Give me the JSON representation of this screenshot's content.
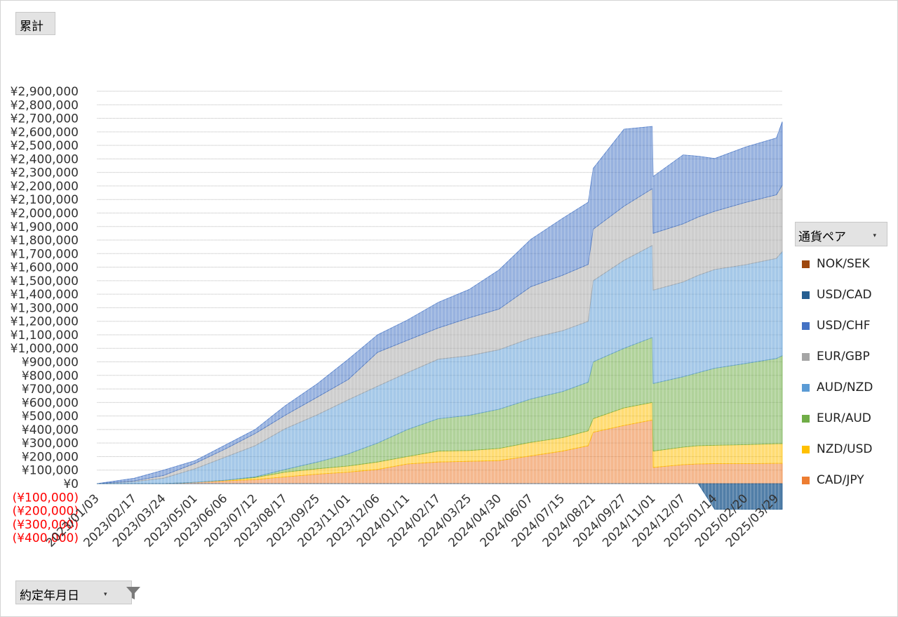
{
  "buttons": {
    "value_field": "累計",
    "date_field": "約定年月日",
    "legend_field": "通貨ペア"
  },
  "icons": {
    "legend_dropdown": "dropdown-arrow-icon",
    "date_dropdown": "dropdown-arrow-icon",
    "date_filter": "filter-icon"
  },
  "legend": [
    {
      "name": "NOK/SEK",
      "color": "#9e480e"
    },
    {
      "name": "USD/CAD",
      "color": "#255e91"
    },
    {
      "name": "USD/CHF",
      "color": "#4472c4"
    },
    {
      "name": "EUR/GBP",
      "color": "#a5a5a5"
    },
    {
      "name": "AUD/NZD",
      "color": "#5b9bd5"
    },
    {
      "name": "EUR/AUD",
      "color": "#70ad47"
    },
    {
      "name": "NZD/USD",
      "color": "#ffc000"
    },
    {
      "name": "CAD/JPY",
      "color": "#ed7d31"
    }
  ],
  "chart_data": {
    "type": "area",
    "stacked": true,
    "ylim": [
      -400000,
      2900000
    ],
    "ytick_step": 100000,
    "y_tick_labels": [
      "¥2,900,000",
      "¥2,800,000",
      "¥2,700,000",
      "¥2,600,000",
      "¥2,500,000",
      "¥2,400,000",
      "¥2,300,000",
      "¥2,200,000",
      "¥2,100,000",
      "¥2,000,000",
      "¥1,900,000",
      "¥1,800,000",
      "¥1,700,000",
      "¥1,600,000",
      "¥1,500,000",
      "¥1,400,000",
      "¥1,300,000",
      "¥1,200,000",
      "¥1,100,000",
      "¥1,000,000",
      "¥900,000",
      "¥800,000",
      "¥700,000",
      "¥600,000",
      "¥500,000",
      "¥400,000",
      "¥300,000",
      "¥200,000",
      "¥100,000",
      "¥0",
      "(¥100,000)",
      "(¥200,000)",
      "(¥300,000)",
      "(¥400,000)"
    ],
    "negative_label_color": "#ff0000",
    "x_tick_labels": [
      "2023/01/03",
      "2023/02/17",
      "2023/03/24",
      "2023/05/01",
      "2023/06/06",
      "2023/07/12",
      "2023/08/17",
      "2023/09/25",
      "2023/11/01",
      "2023/12/06",
      "2024/01/11",
      "2024/02/17",
      "2024/03/25",
      "2024/04/30",
      "2024/06/07",
      "2024/07/15",
      "2024/08/21",
      "2024/09/27",
      "2024/11/01",
      "2024/12/07",
      "2025/01/14",
      "2025/02/20",
      "2025/03/29"
    ],
    "x": [
      "2023/01/03",
      "2023/02/17",
      "2023/03/24",
      "2023/05/01",
      "2023/06/06",
      "2023/07/12",
      "2023/08/17",
      "2023/09/25",
      "2023/11/01",
      "2023/12/06",
      "2024/01/11",
      "2024/02/17",
      "2024/03/25",
      "2024/04/30",
      "2024/06/07",
      "2024/07/15",
      "2024/08/15",
      "2024/08/21",
      "2024/09/27",
      "2024/10/31",
      "2024/11/01",
      "2024/12/07",
      "2024/12/25",
      "2025/01/14",
      "2025/02/20",
      "2025/03/29",
      "2025/04/05"
    ],
    "series": [
      {
        "name": "CAD/JPY",
        "values": [
          0,
          0,
          0,
          10000,
          20000,
          30000,
          50000,
          70000,
          85000,
          105000,
          145000,
          160000,
          165000,
          170000,
          205000,
          240000,
          280000,
          380000,
          430000,
          470000,
          120000,
          140000,
          145000,
          148000,
          148000,
          150000,
          150000
        ]
      },
      {
        "name": "NZD/USD",
        "values": [
          0,
          0,
          0,
          0,
          5000,
          15000,
          35000,
          40000,
          45000,
          55000,
          55000,
          80000,
          80000,
          90000,
          100000,
          100000,
          110000,
          100000,
          130000,
          130000,
          120000,
          130000,
          135000,
          135000,
          140000,
          145000,
          145000
        ]
      },
      {
        "name": "EUR/AUD",
        "values": [
          0,
          0,
          0,
          0,
          0,
          5000,
          20000,
          50000,
          90000,
          140000,
          200000,
          240000,
          260000,
          290000,
          320000,
          340000,
          360000,
          420000,
          440000,
          480000,
          500000,
          520000,
          540000,
          570000,
          600000,
          630000,
          650000
        ]
      },
      {
        "name": "AUD/NZD",
        "values": [
          0,
          15000,
          40000,
          100000,
          170000,
          230000,
          300000,
          350000,
          400000,
          420000,
          420000,
          440000,
          440000,
          440000,
          450000,
          450000,
          450000,
          600000,
          650000,
          680000,
          690000,
          700000,
          720000,
          730000,
          730000,
          740000,
          770000
        ]
      },
      {
        "name": "EUR/GBP",
        "values": [
          0,
          5000,
          20000,
          40000,
          60000,
          90000,
          100000,
          130000,
          150000,
          250000,
          240000,
          230000,
          280000,
          300000,
          380000,
          410000,
          420000,
          380000,
          400000,
          420000,
          420000,
          430000,
          430000,
          430000,
          460000,
          470000,
          490000
        ]
      },
      {
        "name": "USD/CHF",
        "values": [
          0,
          20000,
          40000,
          20000,
          30000,
          30000,
          70000,
          100000,
          150000,
          130000,
          150000,
          190000,
          210000,
          290000,
          350000,
          420000,
          460000,
          450000,
          570000,
          460000,
          420000,
          510000,
          450000,
          390000,
          410000,
          420000,
          470000
        ]
      },
      {
        "name": "USD/CAD",
        "values": [
          0,
          0,
          0,
          0,
          0,
          0,
          0,
          0,
          0,
          0,
          0,
          0,
          0,
          0,
          0,
          0,
          0,
          0,
          0,
          0,
          0,
          0,
          0,
          -190000,
          -190000,
          -190000,
          -190000
        ]
      },
      {
        "name": "NOK/SEK",
        "values": [
          0,
          0,
          0,
          0,
          0,
          0,
          0,
          0,
          0,
          0,
          0,
          0,
          0,
          0,
          0,
          0,
          0,
          0,
          0,
          0,
          0,
          0,
          0,
          0,
          0,
          0,
          0
        ]
      }
    ]
  }
}
